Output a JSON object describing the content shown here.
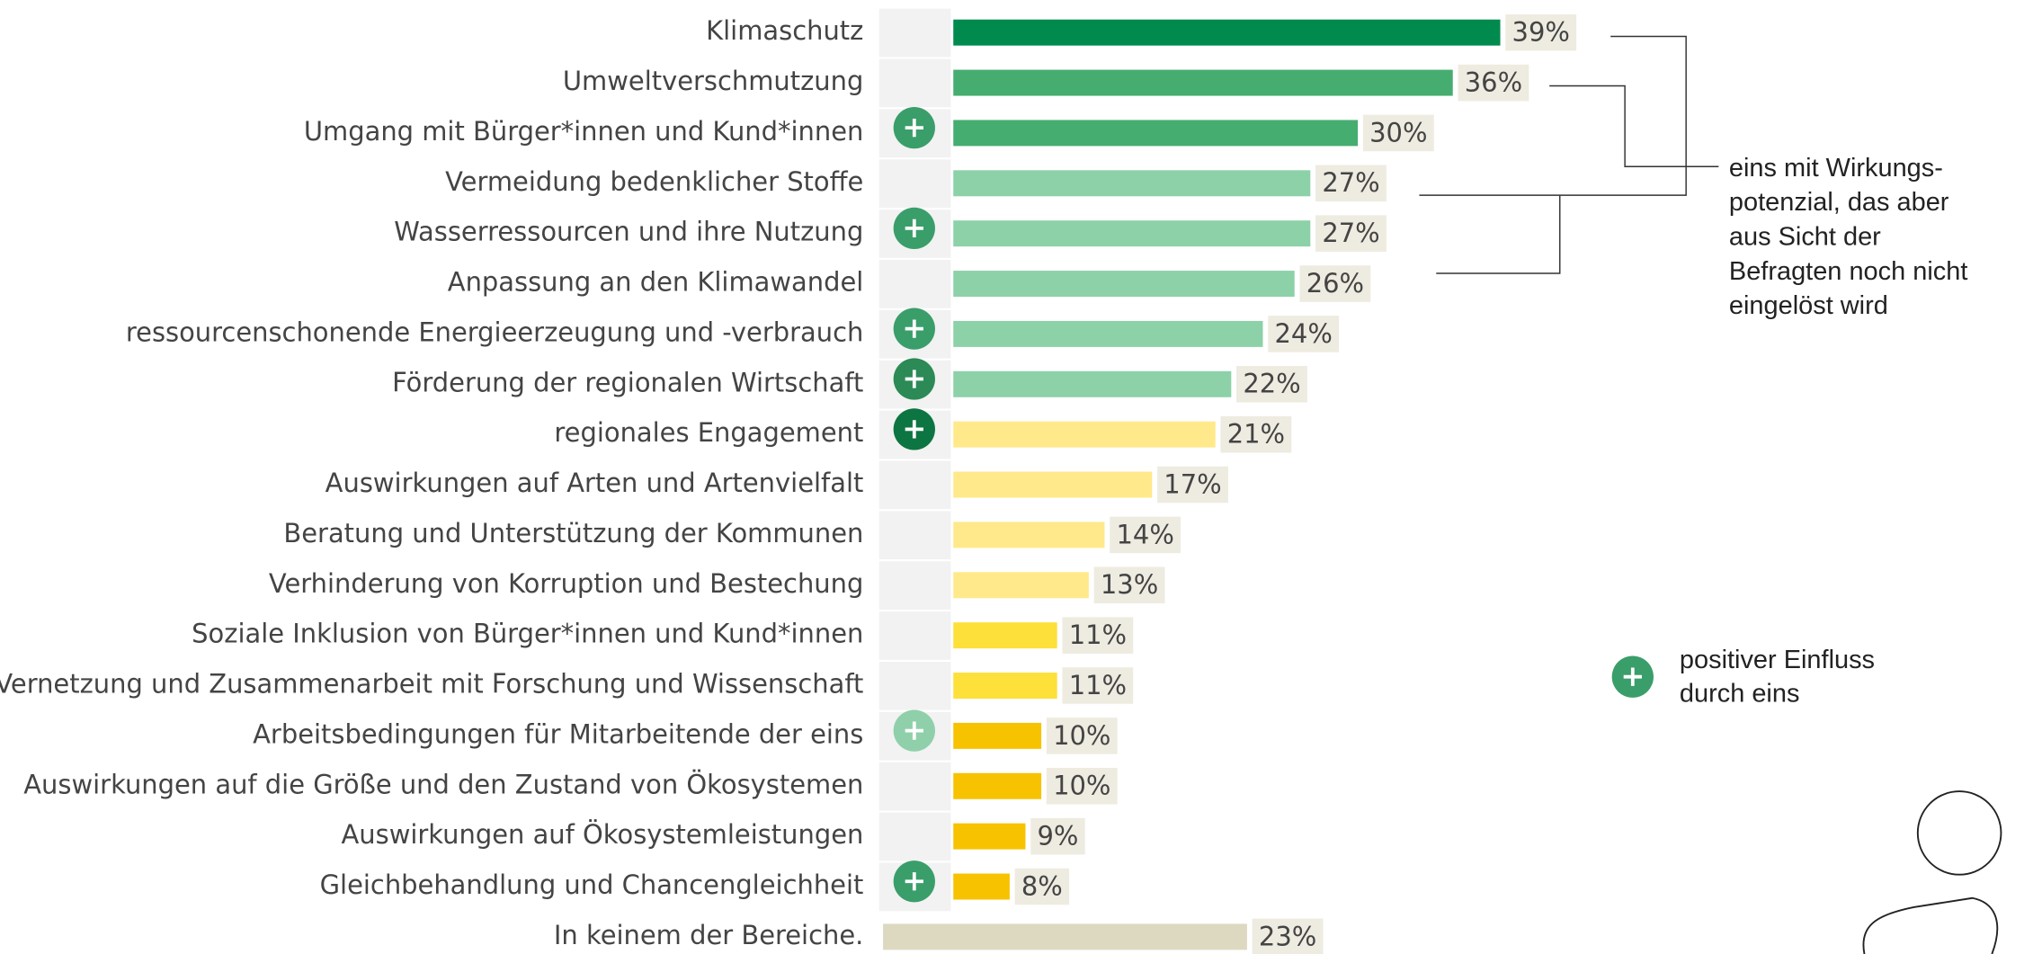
{
  "chart_data": {
    "type": "barh",
    "categories": [
      "Klimaschutz",
      "Umweltverschmutzung",
      "Umgang mit Bürger*innen und Kund*innen",
      "Vermeidung bedenklicher Stoffe",
      "Wasserressourcen und ihre Nutzung",
      "Anpassung an den Klimawandel",
      "ressourcenschonende Energieerzeugung und -verbrauch",
      "Förderung der regionalen Wirtschaft",
      "regionales Engagement",
      "Auswirkungen auf Arten und Artenvielfalt",
      "Beratung und Unterstützung der Kommunen",
      "Verhinderung von Korruption und Bestechung",
      "Soziale Inklusion von Bürger*innen und Kund*innen",
      "Vernetzung und Zusammenarbeit mit Forschung und Wissenschaft",
      "Arbeitsbedingungen für Mitarbeitende der eins",
      "Auswirkungen auf die Größe und den Zustand von Ökosystemen",
      "Auswirkungen auf Ökosystemleistungen",
      "Gleichbehandlung und Chancengleichheit",
      "In keinem der Bereiche."
    ],
    "values": [
      39,
      36,
      30,
      27,
      27,
      26,
      24,
      22,
      21,
      17,
      14,
      13,
      11,
      11,
      10,
      10,
      9,
      8,
      23
    ],
    "value_labels": [
      "39%",
      "36%",
      "30%",
      "27%",
      "27%",
      "26%",
      "24%",
      "22%",
      "21%",
      "17%",
      "14%",
      "13%",
      "11%",
      "11%",
      "10%",
      "10%",
      "9%",
      "8%",
      "23%"
    ],
    "colors": [
      "#008a4e",
      "#45ad6f",
      "#45ad6f",
      "#8dd1a8",
      "#8dd1a8",
      "#8dd1a8",
      "#8dd1a8",
      "#8dd1a8",
      "#ffe98a",
      "#ffe98a",
      "#ffe98a",
      "#ffe98a",
      "#fde03a",
      "#fde03a",
      "#f7c200",
      "#f7c200",
      "#f7c200",
      "#f7c200",
      "#ddd8c0"
    ],
    "icons": [
      {
        "index": 2,
        "color": "#3a9e6a"
      },
      {
        "index": 4,
        "color": "#3a9e6a"
      },
      {
        "index": 6,
        "color": "#3a9e6a"
      },
      {
        "index": 7,
        "color": "#2b8a55"
      },
      {
        "index": 8,
        "color": "#0d7541"
      },
      {
        "index": 14,
        "color": "#8fd0aa"
      },
      {
        "index": 17,
        "color": "#3a9e6a"
      }
    ],
    "annotation": [
      "eins mit Wirkungs-",
      "potenzial, das aber",
      "aus Sicht der",
      "Befragten noch nicht",
      "eingelöst wird"
    ],
    "legend": {
      "label": [
        "positiver Einfluss",
        "durch eins"
      ],
      "color": "#3a9e6a"
    }
  }
}
